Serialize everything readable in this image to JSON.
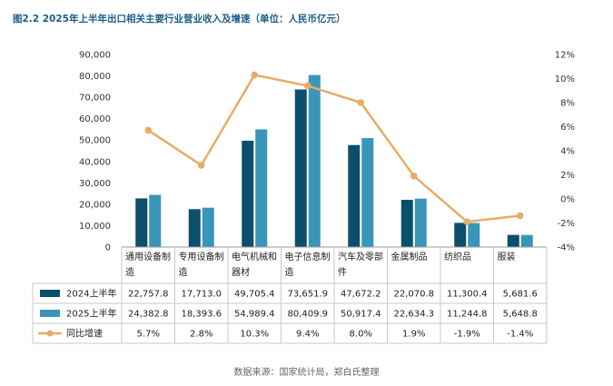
{
  "chart_data": {
    "type": "bar",
    "title": "图2.2 2025年上半年出口相关主要行业营业收入及增速（单位：人民币亿元）",
    "categories": [
      [
        "通用设备制",
        "造"
      ],
      [
        "专用设备制",
        "造"
      ],
      [
        "电气机械和",
        "器材"
      ],
      [
        "电子信息制",
        "造"
      ],
      [
        "汽车及零部",
        "件"
      ],
      [
        "金属制品"
      ],
      [
        "纺织品"
      ],
      [
        "服装"
      ]
    ],
    "series": [
      {
        "name": "2024上半年",
        "kind": "bar",
        "color": "#0b4f6c",
        "values": [
          22757.8,
          17713.0,
          49705.4,
          73651.9,
          47672.2,
          22070.8,
          11300.4,
          5681.6
        ],
        "labels": [
          "22,757.8",
          "17,713.0",
          "49,705.4",
          "73,651.9",
          "47,672.2",
          "22,070.8",
          "11,300.4",
          "5,681.6"
        ]
      },
      {
        "name": "2025上半年",
        "kind": "bar",
        "color": "#3a96b8",
        "values": [
          24382.8,
          18393.6,
          54989.4,
          80409.9,
          50917.4,
          22634.3,
          11244.8,
          5648.8
        ],
        "labels": [
          "24,382.8",
          "18,393.6",
          "54,989.4",
          "80,409.9",
          "50,917.4",
          "22,634.3",
          "11,244.8",
          "5,648.8"
        ]
      },
      {
        "name": "同比增速",
        "kind": "line",
        "axis": "right",
        "color": "#e8ac66",
        "values": [
          5.7,
          2.8,
          10.3,
          9.4,
          8.0,
          1.9,
          -1.9,
          -1.4
        ],
        "labels": [
          "5.7%",
          "2.8%",
          "10.3%",
          "9.4%",
          "8.0%",
          "1.9%",
          "-1.9%",
          "-1.4%"
        ]
      }
    ],
    "ylim": [
      0,
      90000
    ],
    "yticks": [
      "0",
      "10,000",
      "20,000",
      "30,000",
      "40,000",
      "50,000",
      "60,000",
      "70,000",
      "80,000",
      "90,000"
    ],
    "y2lim": [
      -4,
      12
    ],
    "y2ticks": [
      "-4%",
      "-2%",
      "0%",
      "2%",
      "4%",
      "6%",
      "8%",
      "10%",
      "12%"
    ],
    "grid": false,
    "legend": "data-table"
  },
  "source": "数据来源：国家统计局，郑白氏整理"
}
